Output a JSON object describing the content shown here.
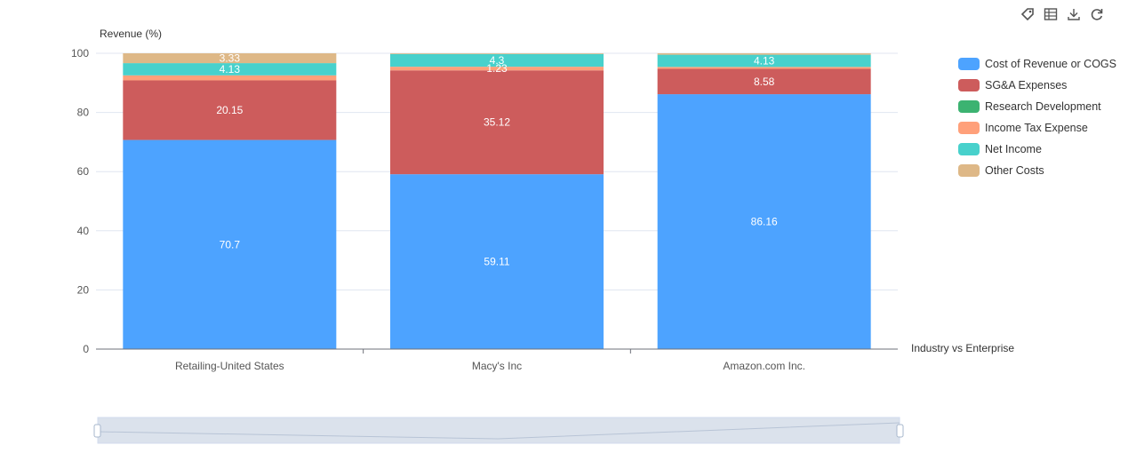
{
  "toolbox": {
    "icons": [
      "tag-icon",
      "data-view-icon",
      "download-icon",
      "refresh-icon"
    ]
  },
  "colors": {
    "Cost of Revenue or COGS": "#4da3ff",
    "SG&A Expenses": "#cd5c5c",
    "Research Development": "#3cb371",
    "Income Tax Expense": "#ffa07a",
    "Net Income": "#48d1cc",
    "Other Costs": "#deb887"
  },
  "chart_data": {
    "type": "bar",
    "stacked": true,
    "ylabel": "Revenue (%)",
    "xlabel": "Industry vs Enterprise",
    "ylim": [
      0,
      100
    ],
    "yticks": [
      0,
      20,
      40,
      60,
      80,
      100
    ],
    "grid": true,
    "legend_position": "right",
    "categories": [
      "Retailing-United States",
      "Macy's Inc",
      "Amazon.com Inc."
    ],
    "series": [
      {
        "name": "Cost of Revenue or COGS",
        "values": [
          70.7,
          59.11,
          86.16
        ],
        "labels": [
          "70.7",
          "59.11",
          "86.16"
        ]
      },
      {
        "name": "SG&A Expenses",
        "values": [
          20.15,
          35.12,
          8.58
        ],
        "labels": [
          "20.15",
          "35.12",
          "8.58"
        ]
      },
      {
        "name": "Research Development",
        "values": [
          0,
          0,
          0
        ],
        "labels": [
          "",
          "",
          ""
        ]
      },
      {
        "name": "Income Tax Expense",
        "values": [
          1.69,
          1.23,
          0.65
        ],
        "labels": [
          "",
          "1.23",
          ""
        ]
      },
      {
        "name": "Net Income",
        "values": [
          4.13,
          4.3,
          4.13
        ],
        "labels": [
          "4.13",
          "4.3",
          "4.13"
        ]
      },
      {
        "name": "Other Costs",
        "values": [
          3.33,
          0.24,
          0.48
        ],
        "labels": [
          "3.33",
          "",
          ""
        ]
      }
    ],
    "data_zoom": {
      "start": 0,
      "end": 100
    }
  }
}
